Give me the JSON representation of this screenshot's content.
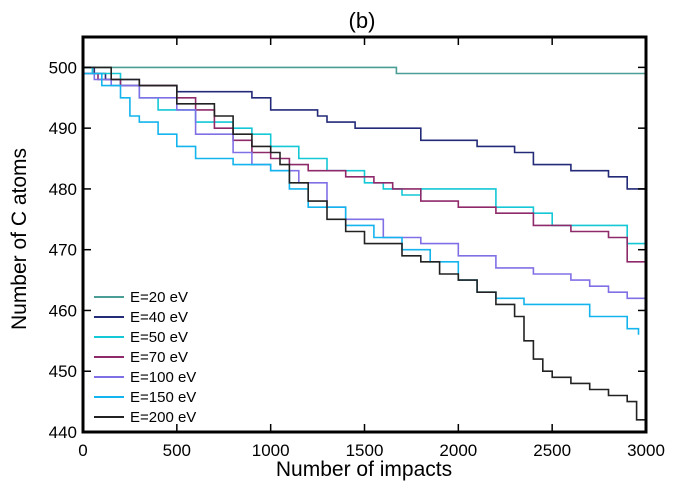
{
  "chart_data": {
    "type": "line",
    "title": "(b)",
    "xlabel": "Number of impacts",
    "ylabel": "Number of C atoms",
    "xlim": [
      0,
      3000
    ],
    "ylim": [
      440,
      505
    ],
    "xticks": [
      0,
      500,
      1000,
      1500,
      2000,
      2500,
      3000
    ],
    "yticks": [
      440,
      450,
      460,
      470,
      480,
      490,
      500
    ],
    "xtick_labels": [
      "0",
      "500",
      "1000",
      "1500",
      "2000",
      "2500",
      "3000"
    ],
    "ytick_labels": [
      "440",
      "450",
      "460",
      "470",
      "480",
      "490",
      "500"
    ],
    "grid": false,
    "legend_position": "bottom-left",
    "series": [
      {
        "name": "E=20 eV",
        "color": "#4a9e96",
        "x": [
          0,
          1660,
          1670,
          3000
        ],
        "y": [
          500,
          500,
          499,
          499
        ]
      },
      {
        "name": "E=40 eV",
        "color": "#232a78",
        "x": [
          0,
          60,
          120,
          300,
          500,
          700,
          900,
          1000,
          1250,
          1300,
          1450,
          1600,
          1800,
          2100,
          2300,
          2400,
          2600,
          2800,
          2900,
          3000
        ],
        "y": [
          500,
          499,
          498,
          497,
          496,
          496,
          495,
          493,
          492,
          491,
          490,
          490,
          488,
          487,
          486,
          484,
          483,
          482,
          480,
          480
        ]
      },
      {
        "name": "E=50 eV",
        "color": "#14c8d6",
        "x": [
          0,
          50,
          200,
          300,
          400,
          600,
          800,
          900,
          1000,
          1150,
          1300,
          1500,
          1600,
          1700,
          1800,
          2000,
          2200,
          2400,
          2500,
          2700,
          2900,
          3000
        ],
        "y": [
          500,
          499,
          497,
          495,
          493,
          491,
          490,
          489,
          487,
          485,
          483,
          481,
          480,
          479,
          480,
          480,
          477,
          476,
          474,
          474,
          471,
          471
        ]
      },
      {
        "name": "E=70 eV",
        "color": "#8e2a6a",
        "x": [
          0,
          80,
          200,
          400,
          500,
          600,
          700,
          800,
          900,
          1000,
          1100,
          1200,
          1400,
          1550,
          1650,
          1800,
          2000,
          2200,
          2400,
          2600,
          2800,
          2900,
          3000
        ],
        "y": [
          499,
          498,
          497,
          497,
          495,
          493,
          490,
          488,
          486,
          485,
          484,
          483,
          482,
          481,
          480,
          478,
          477,
          476,
          474,
          473,
          472,
          468,
          467
        ]
      },
      {
        "name": "E=100 eV",
        "color": "#8070e6",
        "x": [
          0,
          60,
          150,
          300,
          500,
          600,
          800,
          900,
          1000,
          1150,
          1300,
          1400,
          1600,
          1800,
          2000,
          2200,
          2400,
          2600,
          2700,
          2800,
          2900,
          3000
        ],
        "y": [
          499,
          498,
          497,
          495,
          493,
          489,
          486,
          484,
          483,
          481,
          477,
          475,
          472,
          471,
          469,
          467,
          466,
          465,
          464,
          463,
          462,
          462
        ]
      },
      {
        "name": "E=150 eV",
        "color": "#14b4ee",
        "x": [
          0,
          100,
          200,
          250,
          300,
          400,
          500,
          600,
          800,
          1000,
          1100,
          1200,
          1400,
          1550,
          1700,
          1850,
          2000,
          2100,
          2200,
          2350,
          2500,
          2600,
          2700,
          2800,
          2900,
          2960
        ],
        "y": [
          499,
          497,
          495,
          492,
          491,
          489,
          487,
          485,
          484,
          483,
          480,
          477,
          474,
          472,
          470,
          468,
          465,
          463,
          462,
          461,
          461,
          461,
          459,
          459,
          457,
          456
        ]
      },
      {
        "name": "E=200 eV",
        "color": "#222222",
        "x": [
          0,
          50,
          150,
          300,
          500,
          700,
          800,
          900,
          1000,
          1050,
          1100,
          1200,
          1300,
          1400,
          1500,
          1600,
          1700,
          1800,
          1900,
          2000,
          2100,
          2200,
          2300,
          2350,
          2400,
          2450,
          2500,
          2600,
          2700,
          2800,
          2900,
          2950,
          3000
        ],
        "y": [
          500,
          500,
          498,
          497,
          494,
          492,
          489,
          487,
          486,
          484,
          481,
          478,
          475,
          473,
          471,
          471,
          469,
          468,
          466,
          465,
          463,
          461,
          459,
          455,
          452,
          450,
          449,
          448,
          447,
          446,
          445,
          442,
          441
        ]
      }
    ]
  }
}
